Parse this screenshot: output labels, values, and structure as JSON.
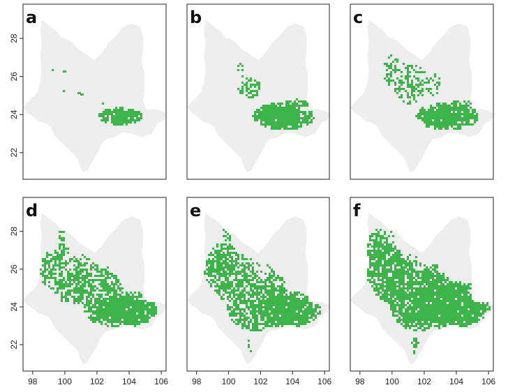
{
  "figure": {
    "colors": {
      "background": "#ffffff",
      "region": "#eeeeee",
      "habitat": "#3cb44a",
      "frame": "#222222"
    },
    "x_ticks": [
      "98",
      "100",
      "102",
      "104",
      "106"
    ],
    "y_ticks": [
      "28",
      "26",
      "24",
      "22"
    ],
    "x_range": [
      97.4,
      106.3
    ],
    "y_range": [
      20.6,
      29.8
    ],
    "panels": [
      {
        "letter": "a",
        "habitat_level": 1,
        "show_y_ticks": true,
        "show_x_ticks": false
      },
      {
        "letter": "b",
        "habitat_level": 2,
        "show_y_ticks": false,
        "show_x_ticks": false
      },
      {
        "letter": "c",
        "habitat_level": 3,
        "show_y_ticks": false,
        "show_x_ticks": false
      },
      {
        "letter": "d",
        "habitat_level": 4,
        "show_y_ticks": true,
        "show_x_ticks": true
      },
      {
        "letter": "e",
        "habitat_level": 5,
        "show_y_ticks": false,
        "show_x_ticks": true
      },
      {
        "letter": "f",
        "habitat_level": 6,
        "show_y_ticks": false,
        "show_x_ticks": true
      }
    ]
  }
}
